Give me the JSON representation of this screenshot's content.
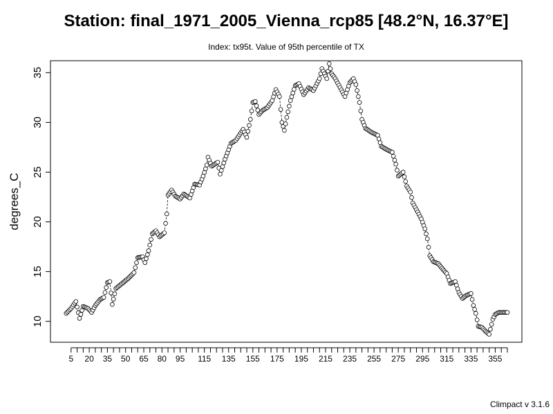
{
  "chart_data": {
    "type": "line",
    "title": "Station: final_1971_2005_Vienna_rcp85 [48.2°N, 16.37°E]",
    "subtitle": "Index: tx95t. Value of 95th percentile of TX",
    "xlabel": "",
    "ylabel": "degrees_C",
    "xlim": [
      -12,
      377
    ],
    "ylim": [
      7.9,
      36.2
    ],
    "y_ticks": [
      10,
      15,
      20,
      25,
      30,
      35
    ],
    "x_tick_labels": [
      "5",
      "20",
      "35",
      "50",
      "65",
      "80",
      "95",
      "115",
      "135",
      "155",
      "175",
      "195",
      "215",
      "235",
      "255",
      "275",
      "295",
      "315",
      "335",
      "355"
    ],
    "x_ticks_minor_step": 5,
    "line_style": "dashed",
    "marker": "open-circle",
    "grid": false,
    "knots": [
      [
        1,
        10.8
      ],
      [
        5,
        11.3
      ],
      [
        9,
        12.0
      ],
      [
        12,
        10.3
      ],
      [
        15,
        11.5
      ],
      [
        19,
        11.3
      ],
      [
        22,
        10.9
      ],
      [
        25,
        11.6
      ],
      [
        29,
        12.2
      ],
      [
        32,
        12.4
      ],
      [
        35,
        13.9
      ],
      [
        37,
        14.0
      ],
      [
        39,
        11.7
      ],
      [
        42,
        13.3
      ],
      [
        47,
        13.8
      ],
      [
        52,
        14.3
      ],
      [
        57,
        14.9
      ],
      [
        60,
        16.4
      ],
      [
        64,
        16.5
      ],
      [
        66,
        15.9
      ],
      [
        69,
        17.1
      ],
      [
        72,
        18.8
      ],
      [
        75,
        19.1
      ],
      [
        78,
        18.5
      ],
      [
        82,
        18.9
      ],
      [
        84,
        20.8
      ],
      [
        85,
        22.7
      ],
      [
        88,
        23.2
      ],
      [
        91,
        22.6
      ],
      [
        95,
        22.3
      ],
      [
        98,
        22.8
      ],
      [
        103,
        22.4
      ],
      [
        107,
        23.8
      ],
      [
        111,
        23.7
      ],
      [
        114,
        24.6
      ],
      [
        117,
        25.7
      ],
      [
        118,
        26.5
      ],
      [
        121,
        25.6
      ],
      [
        126,
        26.0
      ],
      [
        128,
        24.8
      ],
      [
        132,
        26.3
      ],
      [
        137,
        27.9
      ],
      [
        141,
        28.2
      ],
      [
        147,
        29.3
      ],
      [
        150,
        28.5
      ],
      [
        153,
        30.3
      ],
      [
        155,
        32.0
      ],
      [
        157,
        32.1
      ],
      [
        160,
        30.8
      ],
      [
        163,
        31.2
      ],
      [
        167,
        31.5
      ],
      [
        171,
        32.2
      ],
      [
        174,
        33.3
      ],
      [
        177,
        32.6
      ],
      [
        179,
        30.0
      ],
      [
        181,
        29.2
      ],
      [
        183,
        30.5
      ],
      [
        186,
        32.2
      ],
      [
        190,
        33.7
      ],
      [
        193,
        33.9
      ],
      [
        197,
        32.8
      ],
      [
        201,
        33.5
      ],
      [
        205,
        33.2
      ],
      [
        210,
        34.4
      ],
      [
        212,
        35.4
      ],
      [
        216,
        34.4
      ],
      [
        218,
        35.9
      ],
      [
        220,
        34.9
      ],
      [
        223,
        34.4
      ],
      [
        227,
        33.5
      ],
      [
        231,
        32.6
      ],
      [
        235,
        34.0
      ],
      [
        238,
        34.4
      ],
      [
        240,
        33.8
      ],
      [
        243,
        32.0
      ],
      [
        245,
        30.3
      ],
      [
        248,
        29.4
      ],
      [
        253,
        29.0
      ],
      [
        258,
        28.7
      ],
      [
        261,
        27.6
      ],
      [
        265,
        27.3
      ],
      [
        270,
        27.0
      ],
      [
        273,
        25.8
      ],
      [
        275,
        24.6
      ],
      [
        279,
        25.0
      ],
      [
        282,
        23.6
      ],
      [
        285,
        23.0
      ],
      [
        287,
        21.9
      ],
      [
        291,
        21.0
      ],
      [
        294,
        20.3
      ],
      [
        297,
        19.3
      ],
      [
        299,
        18.3
      ],
      [
        301,
        16.6
      ],
      [
        304,
        16.0
      ],
      [
        308,
        15.8
      ],
      [
        312,
        15.2
      ],
      [
        315,
        14.8
      ],
      [
        318,
        13.8
      ],
      [
        322,
        14.0
      ],
      [
        325,
        12.9
      ],
      [
        328,
        12.3
      ],
      [
        331,
        12.6
      ],
      [
        335,
        12.8
      ],
      [
        337,
        11.6
      ],
      [
        339,
        10.8
      ],
      [
        341,
        9.5
      ],
      [
        344,
        9.4
      ],
      [
        347,
        9.0
      ],
      [
        350,
        8.7
      ],
      [
        353,
        10.2
      ],
      [
        355,
        10.7
      ],
      [
        358,
        10.9
      ],
      [
        365,
        10.9
      ]
    ]
  },
  "footer": "Climpact v 3.1.6"
}
